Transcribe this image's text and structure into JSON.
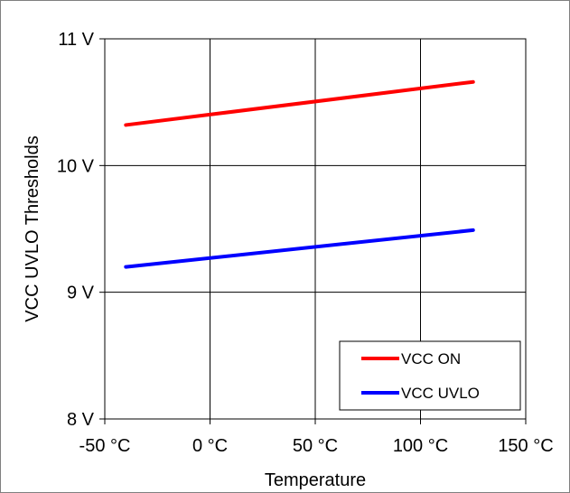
{
  "chart_data": {
    "type": "line",
    "title": "",
    "xlabel": "Temperature",
    "ylabel": "VCC UVLO Thresholds",
    "xlim": [
      -50,
      150
    ],
    "ylim": [
      8,
      11
    ],
    "x_ticks": [
      -50,
      0,
      50,
      100,
      150
    ],
    "x_tick_labels": [
      "-50 °C",
      "0 °C",
      "50 °C",
      "100 °C",
      "150 °C"
    ],
    "y_ticks": [
      8,
      9,
      10,
      11
    ],
    "y_tick_labels": [
      "8 V",
      "9 V",
      "10 V",
      "11 V"
    ],
    "grid": true,
    "legend_position": "bottom-right",
    "series": [
      {
        "name": "VCC ON",
        "color": "#ff0000",
        "x": [
          -40,
          125
        ],
        "y": [
          10.32,
          10.66
        ]
      },
      {
        "name": "VCC UVLO",
        "color": "#0000ff",
        "x": [
          -40,
          125
        ],
        "y": [
          9.2,
          9.49
        ]
      }
    ]
  }
}
